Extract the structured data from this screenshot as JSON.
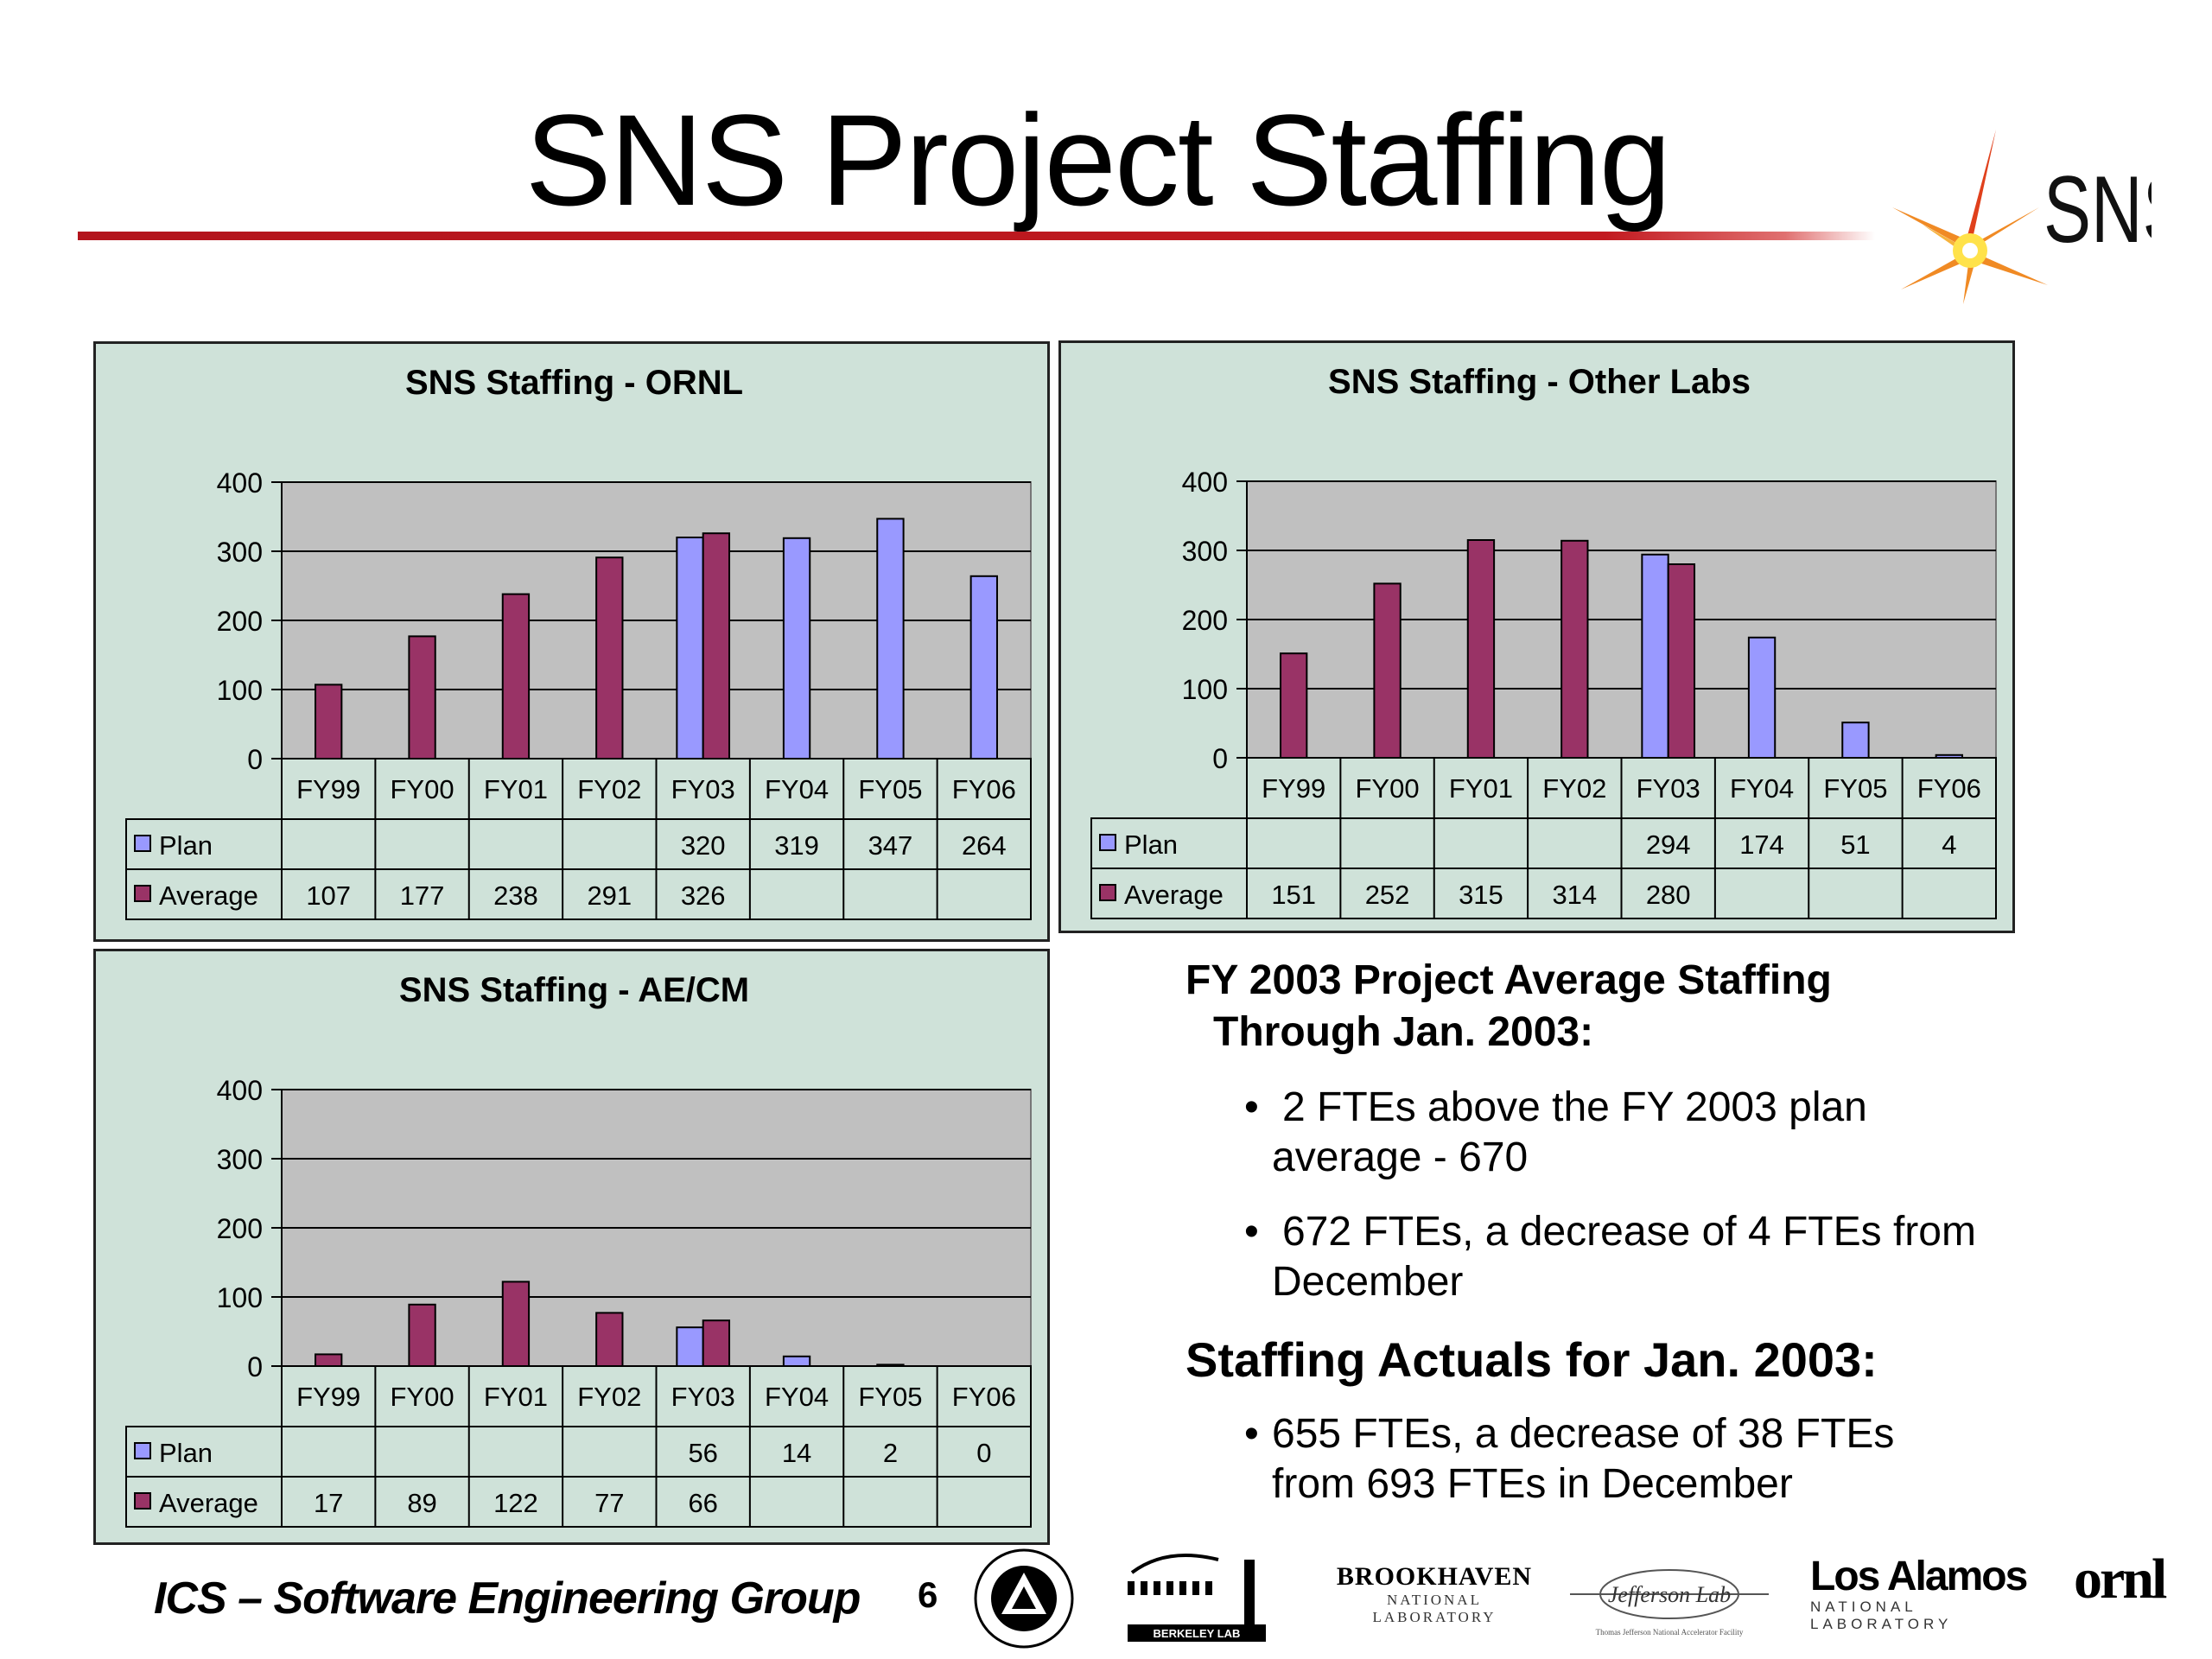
{
  "slide": {
    "title": "SNS Project Staffing",
    "logo_text": "SNS",
    "footer_left": "ICS – Software Engineering Group",
    "page_number": "6"
  },
  "colors": {
    "title_rule": "#c21a20",
    "panel_bg": "#cfe2d9",
    "plot_bg": "#c0c0c0",
    "plan": "#9999ff",
    "average": "#993366"
  },
  "chart_data": [
    {
      "type": "bar",
      "title": "SNS Staffing - ORNL",
      "categories": [
        "FY99",
        "FY00",
        "FY01",
        "FY02",
        "FY03",
        "FY04",
        "FY05",
        "FY06"
      ],
      "series": [
        {
          "name": "Plan",
          "values": [
            null,
            null,
            null,
            null,
            320,
            319,
            347,
            264
          ]
        },
        {
          "name": "Average",
          "values": [
            107,
            177,
            238,
            291,
            326,
            null,
            null,
            null
          ]
        }
      ],
      "ylim": [
        0,
        400
      ],
      "yticks": [
        0,
        100,
        200,
        300,
        400
      ],
      "grid": true,
      "legend": "data-table"
    },
    {
      "type": "bar",
      "title": "SNS Staffing - Other Labs",
      "categories": [
        "FY99",
        "FY00",
        "FY01",
        "FY02",
        "FY03",
        "FY04",
        "FY05",
        "FY06"
      ],
      "series": [
        {
          "name": "Plan",
          "values": [
            null,
            null,
            null,
            null,
            294,
            174,
            51,
            4
          ]
        },
        {
          "name": "Average",
          "values": [
            151,
            252,
            315,
            314,
            280,
            null,
            null,
            null
          ]
        }
      ],
      "ylim": [
        0,
        400
      ],
      "yticks": [
        0,
        100,
        200,
        300,
        400
      ],
      "grid": true,
      "legend": "data-table"
    },
    {
      "type": "bar",
      "title": "SNS Staffing - AE/CM",
      "categories": [
        "FY99",
        "FY00",
        "FY01",
        "FY02",
        "FY03",
        "FY04",
        "FY05",
        "FY06"
      ],
      "series": [
        {
          "name": "Plan",
          "values": [
            null,
            null,
            null,
            null,
            56,
            14,
            2,
            0
          ]
        },
        {
          "name": "Average",
          "values": [
            17,
            89,
            122,
            77,
            66,
            null,
            null,
            null
          ]
        }
      ],
      "ylim": [
        0,
        400
      ],
      "yticks": [
        0,
        100,
        200,
        300,
        400
      ],
      "grid": true,
      "legend": "data-table"
    }
  ],
  "notes": {
    "heading_line1": "FY 2003 Project Average Staffing",
    "heading_line2": "Through Jan. 2003:",
    "bullet1_line1": "2 FTEs above the FY 2003 plan",
    "bullet1_line2": "average - 670",
    "bullet2_line1": "672 FTEs, a decrease of 4 FTEs from",
    "bullet2_line2": "December",
    "heading2": "Staffing Actuals  for Jan.  2003:",
    "bullet3_line1": "655 FTEs, a decrease of 38 FTEs",
    "bullet3_line2": "from 693 FTEs in December",
    "bullet_char": "•"
  },
  "partner_logos": {
    "argonne": "ARGONNE NATIONAL LABORATORY · UNIVERSITY OF CHICAGO",
    "berkeley": "BERKELEY LAB",
    "brookhaven": "BROOKHAVEN",
    "brookhaven_sub": "NATIONAL LABORATORY",
    "jlab": "Jefferson Lab",
    "jlab_sub": "Thomas Jefferson National Accelerator Facility",
    "lanl": "Los Alamos",
    "lanl_sub": "NATIONAL LABORATORY",
    "ornl": "ornl"
  }
}
